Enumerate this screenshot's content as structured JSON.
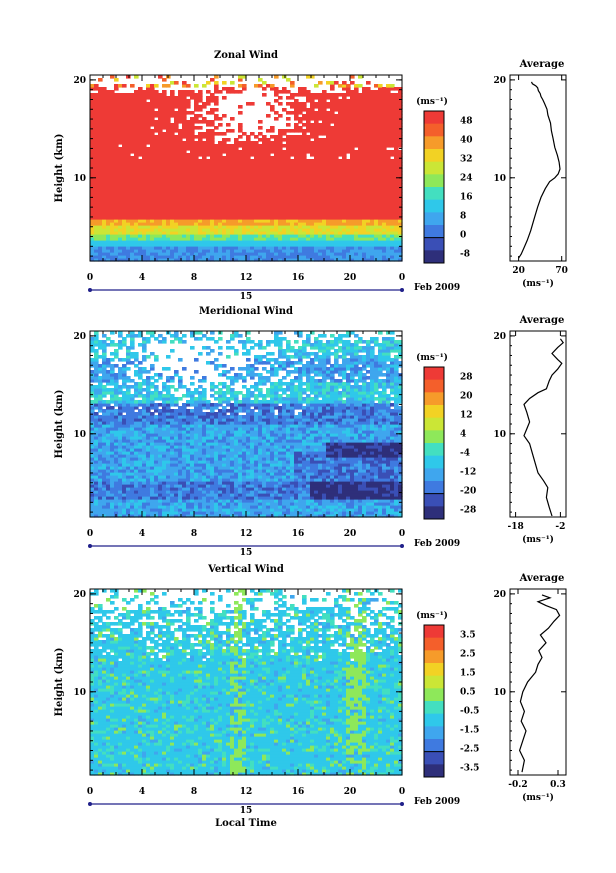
{
  "chart_data": [
    {
      "type": "heatmap",
      "title": "Zonal Wind",
      "ylabel": "Height (km)",
      "xlim": [
        0,
        24
      ],
      "ylim": [
        1.5,
        20.5
      ],
      "x_ticks": [
        "0",
        "4",
        "8",
        "12",
        "16",
        "20",
        "0"
      ],
      "y_ticks": [
        "20",
        "10"
      ],
      "date_marker": "15",
      "date_label": "Feb 2009",
      "colorbar": {
        "unit": "(ms⁻¹)",
        "labels": [
          "48",
          "40",
          "32",
          "24",
          "16",
          "8",
          "0",
          "-8"
        ],
        "colors": [
          "#ee3a36",
          "#f45f2b",
          "#f69b2a",
          "#f2d224",
          "#cbe636",
          "#8ee85a",
          "#43dfc0",
          "#2fc8ea",
          "#3fa6ee",
          "#3f7ae0",
          "#3a4fb6",
          "#2e2f7a"
        ]
      },
      "field": "zonal",
      "profile": {
        "title": "Average",
        "x_ticks": [
          "20",
          "70"
        ],
        "xlim": [
          10,
          75
        ],
        "xlabel": "(ms⁻¹)",
        "y_ticks": [
          "20",
          "10"
        ],
        "points": [
          [
            20,
            1.8
          ],
          [
            23,
            2.2
          ],
          [
            26,
            2.8
          ],
          [
            30,
            3.6
          ],
          [
            34,
            4.6
          ],
          [
            38,
            5.8
          ],
          [
            42,
            7
          ],
          [
            46,
            8
          ],
          [
            51,
            8.9
          ],
          [
            56,
            9.6
          ],
          [
            62,
            10
          ],
          [
            66,
            10.4
          ],
          [
            68,
            10.9
          ],
          [
            67,
            11.6
          ],
          [
            65,
            12.3
          ],
          [
            62,
            13.1
          ],
          [
            60,
            14
          ],
          [
            58,
            14.8
          ],
          [
            57,
            15.6
          ],
          [
            54,
            16.4
          ],
          [
            53,
            17
          ],
          [
            50,
            17.6
          ],
          [
            48,
            18
          ],
          [
            46,
            18.3
          ],
          [
            45,
            18.6
          ],
          [
            43,
            18.9
          ],
          [
            42,
            19.2
          ],
          [
            40,
            19.4
          ],
          [
            38,
            19.5
          ],
          [
            36,
            19.6
          ],
          [
            35,
            19.8
          ]
        ]
      }
    },
    {
      "type": "heatmap",
      "title": "Meridional Wind",
      "ylabel": "Height (km)",
      "xlim": [
        0,
        24
      ],
      "ylim": [
        1.5,
        20.5
      ],
      "x_ticks": [
        "0",
        "4",
        "8",
        "12",
        "16",
        "20",
        "0"
      ],
      "y_ticks": [
        "20",
        "10"
      ],
      "date_marker": "15",
      "date_label": "Feb 2009",
      "colorbar": {
        "unit": "(ms⁻¹)",
        "labels": [
          "28",
          "20",
          "12",
          "4",
          "-4",
          "-12",
          "-20",
          "-28"
        ],
        "colors": [
          "#ee3a36",
          "#f45f2b",
          "#f69b2a",
          "#f2d224",
          "#cbe636",
          "#8ee85a",
          "#43dfc0",
          "#2fc8ea",
          "#3fa6ee",
          "#3f7ae0",
          "#3a4fb6",
          "#2e2f7a"
        ]
      },
      "field": "meridional",
      "profile": {
        "title": "Average",
        "x_ticks": [
          "-18",
          "-2"
        ],
        "xlim": [
          -20,
          0
        ],
        "xlabel": "(ms⁻¹)",
        "y_ticks": [
          "20",
          "10"
        ],
        "points": [
          [
            -5,
            1.6
          ],
          [
            -6,
            2.5
          ],
          [
            -7,
            3.5
          ],
          [
            -6.5,
            4.5
          ],
          [
            -8,
            5.2
          ],
          [
            -10,
            6
          ],
          [
            -11,
            7
          ],
          [
            -12,
            8
          ],
          [
            -13,
            9
          ],
          [
            -15,
            9.8
          ],
          [
            -14,
            10.5
          ],
          [
            -13,
            11.2
          ],
          [
            -14,
            12.2
          ],
          [
            -15,
            13
          ],
          [
            -13,
            13.6
          ],
          [
            -10,
            14.2
          ],
          [
            -7,
            14.6
          ],
          [
            -6,
            15.4
          ],
          [
            -5,
            16
          ],
          [
            -3,
            16.6
          ],
          [
            -1.5,
            17.2
          ],
          [
            -3,
            17.6
          ],
          [
            -5,
            18.2
          ],
          [
            -3,
            18.8
          ],
          [
            -1,
            19.3
          ],
          [
            -2,
            19.7
          ]
        ]
      }
    },
    {
      "type": "heatmap",
      "title": "Vertical Wind",
      "ylabel": "Height (km)",
      "xlabel": "Local Time",
      "xlim": [
        0,
        24
      ],
      "ylim": [
        1.5,
        20.5
      ],
      "x_ticks": [
        "0",
        "4",
        "8",
        "12",
        "16",
        "20",
        "0"
      ],
      "y_ticks": [
        "20",
        "10"
      ],
      "date_marker": "15",
      "date_label": "Feb 2009",
      "colorbar": {
        "unit": "(ms⁻¹)",
        "labels": [
          "3.5",
          "2.5",
          "1.5",
          "0.5",
          "-0.5",
          "-1.5",
          "-2.5",
          "-3.5"
        ],
        "colors": [
          "#ee3a36",
          "#f45f2b",
          "#f69b2a",
          "#f2d224",
          "#cbe636",
          "#8ee85a",
          "#43dfc0",
          "#2fc8ea",
          "#3fa6ee",
          "#3f7ae0",
          "#3a4fb6",
          "#2e2f7a"
        ]
      },
      "field": "vertical",
      "profile": {
        "title": "Average",
        "x_ticks": [
          "-0.2",
          "0.3"
        ],
        "xlim": [
          -0.3,
          0.4
        ],
        "xlabel": "(ms⁻¹)",
        "y_ticks": [
          "20",
          "10"
        ],
        "points": [
          [
            -0.15,
            1.8
          ],
          [
            -0.12,
            3
          ],
          [
            -0.18,
            4
          ],
          [
            -0.14,
            5
          ],
          [
            -0.1,
            6
          ],
          [
            -0.16,
            7
          ],
          [
            -0.12,
            8
          ],
          [
            -0.17,
            9
          ],
          [
            -0.14,
            10
          ],
          [
            -0.08,
            11
          ],
          [
            0.02,
            12
          ],
          [
            0.05,
            12.8
          ],
          [
            0.1,
            13.5
          ],
          [
            0.06,
            14.2
          ],
          [
            0.15,
            15
          ],
          [
            0.08,
            15.8
          ],
          [
            0.18,
            16.5
          ],
          [
            0.25,
            17.2
          ],
          [
            0.32,
            17.8
          ],
          [
            0.28,
            18.4
          ],
          [
            0.15,
            18.8
          ],
          [
            0.05,
            19.2
          ],
          [
            0.2,
            19.6
          ],
          [
            0.1,
            19.9
          ]
        ]
      }
    }
  ]
}
